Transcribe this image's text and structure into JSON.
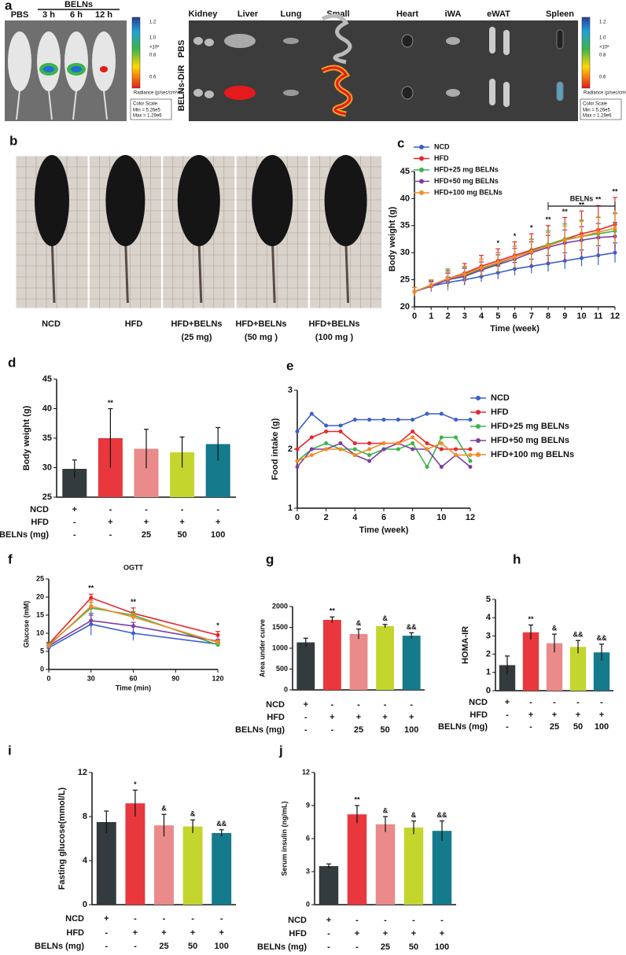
{
  "figure": {
    "a": {
      "letter": "a",
      "header": "BELNs",
      "groups": [
        "PBS",
        "3 h",
        "6 h",
        "12 h"
      ],
      "organs": [
        "Kidney",
        "Liver",
        "Lung",
        "Small",
        "Heart",
        "iWA",
        "eWAT",
        "Spleen"
      ],
      "rows": [
        "PBS",
        "BELNs-DiR"
      ],
      "scale": {
        "ticks": [
          "1.2",
          "1.0",
          "0.8",
          "0.6"
        ],
        "unit": "×10⁸",
        "title": "Radiance (p/sec/cm²/sr)",
        "lines": [
          "Color Scale",
          "Min = 5.26e5",
          "Max = 1.29e6"
        ]
      }
    },
    "b": {
      "letter": "b",
      "labels": [
        [
          "NCD"
        ],
        [
          "HFD"
        ],
        [
          "HFD+BELNs",
          "(25 mg)"
        ],
        [
          "HFD+BELNs",
          "(50 mg )"
        ],
        [
          "HFD+BELNs",
          "(100 mg )"
        ]
      ]
    }
  },
  "chart_data": [
    {
      "panel": "c",
      "type": "line",
      "xlabel": "Time (week)",
      "ylabel": "Body weight (g)",
      "legend": "upper left",
      "x": [
        0,
        1,
        2,
        3,
        4,
        5,
        6,
        7,
        8,
        9,
        10,
        11,
        12
      ],
      "xlim": [
        0,
        12
      ],
      "xticks": [
        0,
        1,
        2,
        3,
        4,
        5,
        6,
        7,
        8,
        9,
        10,
        11,
        12
      ],
      "ylim": [
        20,
        45
      ],
      "yticks": [
        20,
        25,
        30,
        35,
        40,
        45
      ],
      "series": [
        {
          "name": "NCD",
          "color": "#3a5fcd",
          "values": [
            22.8,
            23.8,
            24.5,
            25,
            25.6,
            26.3,
            27,
            27.5,
            28,
            28.5,
            29,
            29.5,
            30
          ],
          "errors": [
            0.8,
            0.8,
            1,
            1,
            1,
            1.2,
            1.2,
            1.3,
            1.5,
            1.5,
            1.5,
            1.8,
            1.8
          ]
        },
        {
          "name": "HFD",
          "color": "#e8262b",
          "values": [
            22.8,
            24,
            25.2,
            26.2,
            27.5,
            28.5,
            29.5,
            30.5,
            31.5,
            32.5,
            33.5,
            34.2,
            35.2
          ],
          "errors": [
            0.8,
            1,
            1.5,
            1.8,
            2,
            2.2,
            2.5,
            3,
            3.5,
            4,
            4.2,
            4.5,
            5
          ]
        },
        {
          "name": "HFD+25 mg BELNs",
          "color": "#3cb44b",
          "values": [
            22.8,
            24,
            25,
            25.8,
            27,
            28,
            29.2,
            30.3,
            31.5,
            32.5,
            33,
            33.5,
            34
          ],
          "errors": [
            0.8,
            1,
            2,
            1.5,
            1.8,
            2,
            2,
            2.2,
            2.5,
            2.8,
            3,
            3,
            3.2
          ]
        },
        {
          "name": "HFD+50 mg BELNs",
          "color": "#7b3fa0",
          "values": [
            22.8,
            23.8,
            25,
            25.6,
            26.8,
            27.8,
            28.8,
            30,
            31,
            31.8,
            32.3,
            32.8,
            33
          ],
          "errors": [
            0.8,
            1,
            1.2,
            1.5,
            1.5,
            1.8,
            2,
            2,
            2.2,
            2.4,
            2.5,
            2.6,
            2.6
          ]
        },
        {
          "name": "HFD+100 mg BELNs",
          "color": "#f58a24",
          "values": [
            22.8,
            24,
            25.2,
            26,
            27.2,
            28.2,
            29.2,
            30.2,
            31.3,
            32.3,
            33,
            33.8,
            34.5
          ],
          "errors": [
            0.8,
            1,
            1.2,
            1.5,
            1.6,
            1.8,
            2,
            2.2,
            2.4,
            2.6,
            2.8,
            2.8,
            2.9
          ]
        }
      ],
      "significance": [
        null,
        null,
        null,
        null,
        null,
        "*",
        "*",
        "*",
        "**",
        "**",
        "**",
        "**",
        "**"
      ],
      "bracket": {
        "label": "BELNs",
        "from": 8,
        "to": 12
      }
    },
    {
      "panel": "d",
      "type": "bar",
      "ylabel": "Body weight (g)",
      "ylim": [
        25,
        45
      ],
      "yticks": [
        25,
        30,
        35,
        40,
        45
      ],
      "values": [
        29.8,
        35,
        33.2,
        32.6,
        34
      ],
      "errors": [
        1.5,
        5,
        3.3,
        2.6,
        2.8
      ],
      "colors": [
        "#343b3e",
        "#e8383d",
        "#ea8a8a",
        "#c4d62e",
        "#157a8c"
      ],
      "significance": [
        null,
        "**",
        null,
        null,
        null
      ],
      "conditions": [
        {
          "label": "NCD",
          "cells": [
            "+",
            "-",
            "-",
            "-",
            "-"
          ]
        },
        {
          "label": "HFD",
          "cells": [
            "-",
            "+",
            "+",
            "+",
            "+"
          ]
        },
        {
          "label": "BELNs (mg)",
          "cells": [
            "-",
            "-",
            "25",
            "50",
            "100"
          ]
        }
      ]
    },
    {
      "panel": "e",
      "type": "line",
      "xlabel": "Time (week)",
      "ylabel": "Food intake (g)",
      "legend": "right",
      "x": [
        0,
        1,
        2,
        3,
        4,
        5,
        6,
        7,
        8,
        9,
        10,
        11,
        12
      ],
      "xlim": [
        0,
        12
      ],
      "xticks": [
        0,
        2,
        4,
        6,
        8,
        10,
        12
      ],
      "ylim": [
        1,
        3
      ],
      "yticks": [
        1,
        2,
        3
      ],
      "series": [
        {
          "name": "NCD",
          "color": "#3a5fcd",
          "values": [
            2.3,
            2.6,
            2.4,
            2.4,
            2.5,
            2.5,
            2.5,
            2.5,
            2.5,
            2.6,
            2.6,
            2.5,
            2.5
          ]
        },
        {
          "name": "HFD",
          "color": "#e8262b",
          "values": [
            2.0,
            2.2,
            2.3,
            2.3,
            2.1,
            2.1,
            2.1,
            2.1,
            2.3,
            2.1,
            2.0,
            2.0,
            2.0
          ]
        },
        {
          "name": "HFD+25 mg BELNs",
          "color": "#3cb44b",
          "values": [
            1.8,
            2.0,
            2.1,
            2.0,
            2.0,
            1.9,
            2.0,
            2.0,
            2.1,
            1.7,
            2.2,
            2.2,
            1.8
          ]
        },
        {
          "name": "HFD+50 mg BELNs",
          "color": "#7b3fa0",
          "values": [
            1.7,
            2.0,
            2.0,
            2.1,
            1.9,
            1.8,
            2.0,
            2.1,
            2.0,
            2.0,
            1.7,
            1.9,
            1.7
          ]
        },
        {
          "name": "HFD+100 mg BELNs",
          "color": "#f58a24",
          "values": [
            1.8,
            1.9,
            2.0,
            2.0,
            1.9,
            2.0,
            2.1,
            2.1,
            2.2,
            2.0,
            2.1,
            1.9,
            1.9
          ]
        }
      ]
    },
    {
      "panel": "f",
      "type": "line",
      "title": "OGTT",
      "xlabel": "Time (min)",
      "ylabel": "Glucose (mM)",
      "x": [
        0,
        30,
        60,
        120
      ],
      "xlim": [
        0,
        120
      ],
      "xticks": [
        0,
        30,
        60,
        90,
        120
      ],
      "ylim": [
        0,
        25
      ],
      "yticks": [
        0,
        5,
        10,
        15,
        20,
        25
      ],
      "series": [
        {
          "color": "#3a5fcd",
          "values": [
            6,
            12.5,
            10,
            7
          ],
          "errors": [
            0.5,
            3,
            2,
            0.5
          ]
        },
        {
          "color": "#e8262b",
          "values": [
            7,
            19.8,
            15.5,
            9.5
          ],
          "errors": [
            0.5,
            1,
            1.5,
            1
          ]
        },
        {
          "color": "#3cb44b",
          "values": [
            6.8,
            17,
            15,
            6.8
          ],
          "errors": [
            0.5,
            1.5,
            1,
            0.5
          ]
        },
        {
          "color": "#7b3fa0",
          "values": [
            6.5,
            13.5,
            12,
            7.8
          ],
          "errors": [
            0.5,
            1.5,
            1,
            0.5
          ]
        },
        {
          "color": "#f58a24",
          "values": [
            6.5,
            17.5,
            14.5,
            7.5
          ],
          "errors": [
            0.5,
            1.5,
            1,
            0.5
          ]
        }
      ],
      "significance": [
        null,
        "**",
        "**",
        "*"
      ]
    },
    {
      "panel": "g",
      "type": "bar",
      "ylabel": "Area under curve",
      "ylim": [
        0,
        2000
      ],
      "yticks": [
        0,
        500,
        1000,
        1500,
        2000
      ],
      "values": [
        1140,
        1680,
        1340,
        1530,
        1300
      ],
      "errors": [
        100,
        70,
        120,
        40,
        70
      ],
      "colors": [
        "#343b3e",
        "#e8383d",
        "#ea8a8a",
        "#c4d62e",
        "#157a8c"
      ],
      "significance": [
        null,
        "**",
        "&",
        "&",
        "&&"
      ],
      "conditions": [
        {
          "label": "NCD",
          "cells": [
            "+",
            "-",
            "-",
            "-",
            "-"
          ]
        },
        {
          "label": "HFD",
          "cells": [
            "-",
            "+",
            "+",
            "+",
            "+"
          ]
        },
        {
          "label": "BELNs (mg)",
          "cells": [
            "-",
            "-",
            "25",
            "50",
            "100"
          ]
        }
      ]
    },
    {
      "panel": "h",
      "type": "bar",
      "ylabel": "HOMA-IR",
      "ylim": [
        0,
        5
      ],
      "yticks": [
        0,
        1,
        2,
        3,
        4,
        5
      ],
      "values": [
        1.4,
        3.2,
        2.6,
        2.4,
        2.1
      ],
      "errors": [
        0.5,
        0.4,
        0.5,
        0.35,
        0.45
      ],
      "colors": [
        "#343b3e",
        "#e8383d",
        "#ea8a8a",
        "#c4d62e",
        "#157a8c"
      ],
      "significance": [
        null,
        "**",
        "&",
        "&&",
        "&&"
      ],
      "conditions": [
        {
          "label": "NCD",
          "cells": [
            "+",
            "-",
            "-",
            "-",
            "-"
          ]
        },
        {
          "label": "HFD",
          "cells": [
            "-",
            "+",
            "+",
            "+",
            "+"
          ]
        },
        {
          "label": "BELNs (mg)",
          "cells": [
            "-",
            "-",
            "25",
            "50",
            "100"
          ]
        }
      ]
    },
    {
      "panel": "i",
      "type": "bar",
      "ylabel": "Fasting glucose(mmol/L)",
      "ylim": [
        0,
        12
      ],
      "yticks": [
        0,
        4,
        8,
        12
      ],
      "values": [
        7.5,
        9.2,
        7.2,
        7.1,
        6.5
      ],
      "errors": [
        1,
        1.2,
        1,
        0.6,
        0.3
      ],
      "colors": [
        "#343b3e",
        "#e8383d",
        "#ea8a8a",
        "#c4d62e",
        "#157a8c"
      ],
      "significance": [
        null,
        "*",
        "&",
        "&",
        "&&"
      ],
      "conditions": [
        {
          "label": "NCD",
          "cells": [
            "+",
            "-",
            "-",
            "-",
            "-"
          ]
        },
        {
          "label": "HFD",
          "cells": [
            "-",
            "+",
            "+",
            "+",
            "+"
          ]
        },
        {
          "label": "BELNs (mg)",
          "cells": [
            "-",
            "-",
            "25",
            "50",
            "100"
          ]
        }
      ]
    },
    {
      "panel": "j",
      "type": "bar",
      "ylabel": "Serum insulin (ng/mL)",
      "ylim": [
        0,
        12
      ],
      "yticks": [
        0,
        3,
        6,
        9,
        12
      ],
      "values": [
        3.5,
        8.2,
        7.3,
        7.0,
        6.7
      ],
      "errors": [
        0.2,
        0.8,
        0.7,
        0.6,
        0.9
      ],
      "colors": [
        "#343b3e",
        "#e8383d",
        "#ea8a8a",
        "#c4d62e",
        "#157a8c"
      ],
      "significance": [
        null,
        "**",
        "&",
        "&",
        "&&"
      ],
      "conditions": [
        {
          "label": "NCD",
          "cells": [
            "+",
            "-",
            "-",
            "-",
            "-"
          ]
        },
        {
          "label": "HFD",
          "cells": [
            "-",
            "+",
            "+",
            "+",
            "+"
          ]
        },
        {
          "label": "BELNs (mg)",
          "cells": [
            "-",
            "-",
            "25",
            "50",
            "100"
          ]
        }
      ]
    }
  ]
}
